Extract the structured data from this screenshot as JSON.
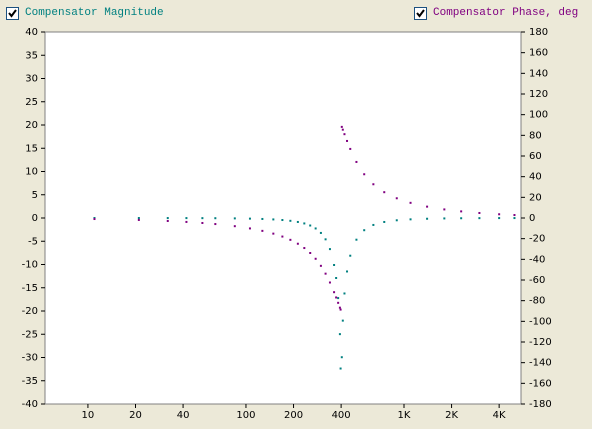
{
  "chart_data": {
    "type": "scatter",
    "x_scale": "log",
    "x": [
      11,
      21,
      32,
      42,
      53,
      64,
      85,
      106,
      127,
      149,
      170,
      191,
      213,
      234,
      255,
      276,
      298,
      319,
      340,
      361,
      372,
      383,
      393,
      397,
      404,
      410,
      420,
      436,
      457,
      500,
      560,
      640,
      750,
      900,
      1100,
      1400,
      1800,
      2300,
      3000,
      4000,
      5000
    ],
    "series": [
      {
        "name": "Compensator Magnitude",
        "color": "#008080",
        "values": [
          -0.0013,
          -0.0047,
          -0.011,
          -0.019,
          -0.031,
          -0.045,
          -0.083,
          -0.136,
          -0.206,
          -0.306,
          -0.434,
          -0.606,
          -0.85,
          -1.17,
          -1.615,
          -2.247,
          -3.211,
          -4.587,
          -6.689,
          -10.106,
          -12.903,
          -17.222,
          -24.975,
          -32.37,
          -29.94,
          -22.07,
          -16.23,
          -11.5,
          -8.11,
          -4.667,
          -2.626,
          -1.495,
          -0.853,
          -0.492,
          -0.288,
          -0.161,
          -0.092,
          -0.054,
          -0.031,
          -0.017,
          -0.011
        ]
      },
      {
        "name": "Compensator Phase, deg",
        "color": "#800080",
        "axis": "y2",
        "values": [
          -0.99,
          -1.88,
          -2.88,
          -3.8,
          -4.82,
          -5.86,
          -7.92,
          -10.1,
          -12.45,
          -15.13,
          -17.96,
          -21.14,
          -24.91,
          -29.07,
          -33.87,
          -39.46,
          -46.29,
          -53.86,
          -62.42,
          -71.79,
          -76.91,
          -82.09,
          -86.77,
          -88.62,
          88.18,
          85.48,
          81.12,
          74.56,
          66.85,
          54.25,
          42.34,
          32.66,
          24.98,
          19.09,
          14.68,
          11.0,
          8.31,
          6.4,
          4.85,
          3.61,
          2.88
        ]
      }
    ],
    "xlim": [
      5.35,
      5500
    ],
    "xticks": [
      10,
      20,
      40,
      100,
      200,
      400,
      {
        "value": 1000,
        "label": "1K"
      },
      {
        "value": 2000,
        "label": "2K"
      },
      {
        "value": 4000,
        "label": "4K"
      }
    ],
    "ylim": [
      -40,
      40
    ],
    "yticks": [
      -40,
      -35,
      -30,
      -25,
      -20,
      -15,
      -10,
      -5,
      0,
      5,
      10,
      15,
      20,
      25,
      30,
      35,
      40
    ],
    "y2lim": [
      -180,
      180
    ],
    "y2ticks": [
      -180,
      -160,
      -140,
      -120,
      -100,
      -80,
      -60,
      -40,
      -20,
      0,
      20,
      40,
      60,
      80,
      100,
      120,
      140,
      160,
      180
    ]
  }
}
